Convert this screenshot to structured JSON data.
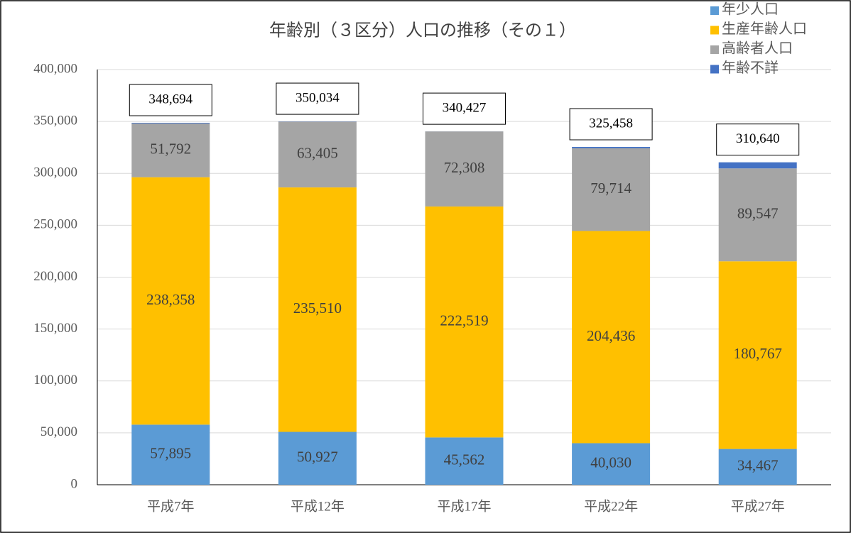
{
  "chart_data": {
    "type": "stacked_bar",
    "title": "年齢別（３区分）人口の推移（その１）",
    "categories": [
      "平成7年",
      "平成12年",
      "平成17年",
      "平成22年",
      "平成27年"
    ],
    "series": [
      {
        "name": "年少人口",
        "color": "#5b9bd5",
        "values": [
          57895,
          50927,
          45562,
          40030,
          34467
        ],
        "value_labels": [
          "57,895",
          "50,927",
          "45,562",
          "40,030",
          "34,467"
        ]
      },
      {
        "name": "生産年齢人口",
        "color": "#ffc000",
        "values": [
          238358,
          235510,
          222519,
          204436,
          180767
        ],
        "value_labels": [
          "238,358",
          "235,510",
          "222,519",
          "204,436",
          "180,767"
        ]
      },
      {
        "name": "高齢者人口",
        "color": "#a5a5a5",
        "values": [
          51792,
          63405,
          72308,
          79714,
          89547
        ],
        "value_labels": [
          "51,792",
          "63,405",
          "72,308",
          "79,714",
          "89,547"
        ]
      },
      {
        "name": "年齢不詳",
        "color": "#4472c4",
        "values": [
          649,
          192,
          38,
          1278,
          5859
        ]
      }
    ],
    "totals": [
      348694,
      350034,
      340427,
      325458,
      310640
    ],
    "total_labels": [
      "348,694",
      "350,034",
      "340,427",
      "325,458",
      "310,640"
    ],
    "ylim": [
      0,
      400000
    ],
    "yticks": [
      0,
      {
        "value": 50000,
        "label": "50,000"
      },
      {
        "value": 100000,
        "label": "100,000"
      },
      {
        "value": 150000,
        "label": "150,000"
      },
      {
        "value": 200000,
        "label": "200,000"
      },
      {
        "value": 250000,
        "label": "250,000"
      },
      {
        "value": 300000,
        "label": "300,000"
      },
      {
        "value": 350000,
        "label": "350,000"
      },
      {
        "value": 400000,
        "label": "400,000"
      }
    ],
    "grid": true
  }
}
